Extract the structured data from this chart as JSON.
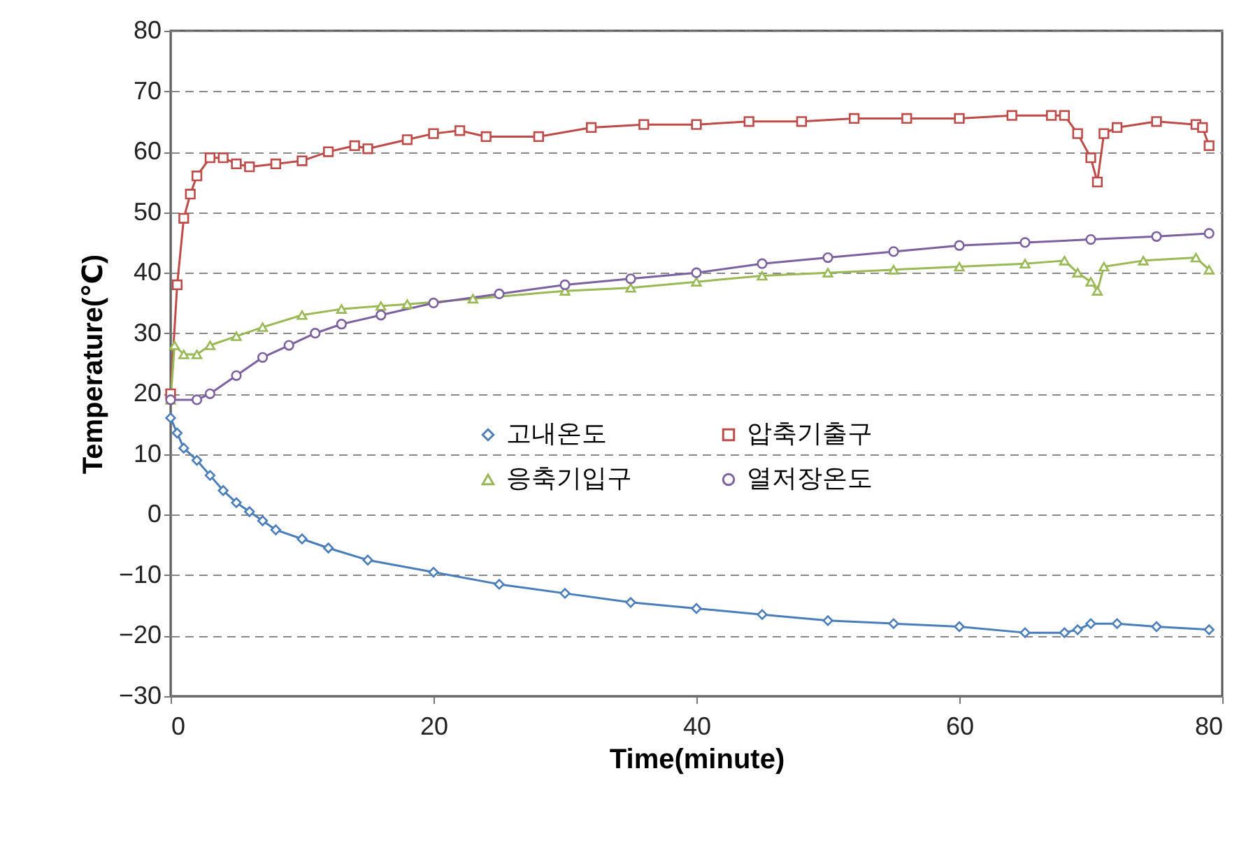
{
  "chart_data": {
    "type": "line",
    "xlabel": "Time(minute)",
    "ylabel": "Temperature(℃)",
    "xlim": [
      0,
      80
    ],
    "xticks": [
      0,
      20,
      40,
      60,
      80
    ],
    "ylim": [
      -30,
      80
    ],
    "yticks": [
      -30,
      -20,
      -10,
      0,
      10,
      20,
      30,
      40,
      50,
      60,
      70,
      80
    ],
    "grid": "y",
    "legend": "right",
    "line_style": "solid",
    "series": [
      {
        "name": "고내온도",
        "color": "#4a7ebb",
        "marker": "diamond",
        "x": [
          0,
          0.5,
          1,
          2,
          3,
          4,
          5,
          6,
          7,
          8,
          10,
          12,
          15,
          20,
          25,
          30,
          35,
          40,
          45,
          50,
          55,
          60,
          65,
          68,
          69,
          70,
          72,
          75,
          79
        ],
        "values": [
          16,
          13.5,
          11,
          9,
          6.5,
          4,
          2,
          0.5,
          -1,
          -2.5,
          -4,
          -5.5,
          -7.5,
          -9.5,
          -11.5,
          -13,
          -14.5,
          -15.5,
          -16.5,
          -17.5,
          -18,
          -18.5,
          -19.5,
          -19.5,
          -19,
          -18,
          -18,
          -18.5,
          -19
        ]
      },
      {
        "name": "압축기출구",
        "color": "#be4b48",
        "marker": "square",
        "x": [
          0,
          0.5,
          1,
          1.5,
          2,
          3,
          4,
          5,
          6,
          8,
          10,
          12,
          14,
          15,
          18,
          20,
          22,
          24,
          28,
          32,
          36,
          40,
          44,
          48,
          52,
          56,
          60,
          64,
          67,
          68,
          69,
          70,
          70.5,
          71,
          72,
          75,
          78,
          78.5,
          79
        ],
        "values": [
          20,
          38,
          49,
          53,
          56,
          59,
          59,
          58,
          57.5,
          58,
          58.5,
          60,
          61,
          60.5,
          62,
          63,
          63.5,
          62.5,
          62.5,
          64,
          64.5,
          64.5,
          65,
          65,
          65.5,
          65.5,
          65.5,
          66,
          66,
          66,
          63,
          59,
          55,
          63,
          64,
          65,
          64.5,
          64,
          61
        ]
      },
      {
        "name": "응축기입구",
        "color": "#98b954",
        "marker": "triangle",
        "x": [
          0,
          0.3,
          1,
          2,
          3,
          5,
          7,
          10,
          13,
          16,
          18,
          23,
          30,
          35,
          40,
          45,
          50,
          55,
          60,
          65,
          68,
          69,
          70,
          70.5,
          71,
          74,
          78,
          79
        ],
        "values": [
          19,
          28,
          26.5,
          26.5,
          28,
          29.5,
          31,
          33,
          34,
          34.5,
          34.8,
          35.7,
          37,
          37.5,
          38.5,
          39.5,
          40,
          40.5,
          41,
          41.5,
          42,
          40,
          38.5,
          37,
          41,
          42,
          42.5,
          40.5
        ]
      },
      {
        "name": "열저장온도",
        "color": "#7d60a0",
        "marker": "circle",
        "x": [
          0,
          2,
          3,
          5,
          7,
          9,
          11,
          13,
          16,
          20,
          25,
          30,
          35,
          40,
          45,
          50,
          55,
          60,
          65,
          70,
          75,
          79
        ],
        "values": [
          19,
          19,
          20,
          23,
          26,
          28,
          30,
          31.5,
          33,
          35,
          36.5,
          38,
          39,
          40,
          41.5,
          42.5,
          43.5,
          44.5,
          45,
          45.5,
          46,
          46.5
        ]
      }
    ]
  }
}
